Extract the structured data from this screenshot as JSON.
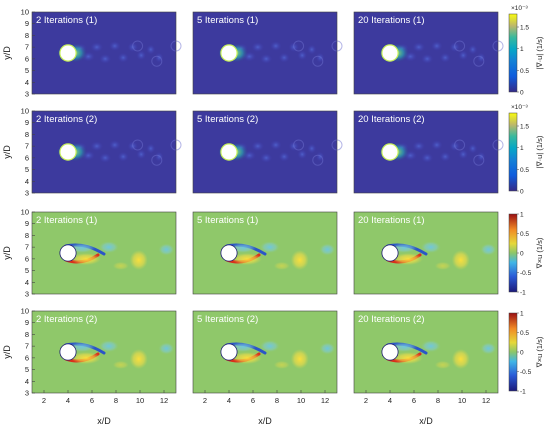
{
  "figure": {
    "xlabel": "x/D",
    "ylabel": "y/D",
    "panel_titles": [
      [
        "2 Iterations (1)",
        "5 Iterations (1)",
        "20 Iterations (1)"
      ],
      [
        "2 Iterations (2)",
        "5 Iterations (2)",
        "20 Iterations (2)"
      ],
      [
        "2 Iterations (1)",
        "5 Iterations (1)",
        "20 Iterations (1)"
      ],
      [
        "2 Iterations (2)",
        "5 Iterations (2)",
        "20 Iterations (2)"
      ]
    ],
    "colorbar_labels": {
      "divergence": "|∇·u| (1/s)",
      "curl": "∇×u (1/s)"
    },
    "colorbar_exponent": "×10⁻³"
  },
  "chart_data": [
    {
      "type": "heatmap",
      "quantity": "divergence",
      "row_suffix": "(1)",
      "panels": [
        "2 Iterations (1)",
        "5 Iterations (1)",
        "20 Iterations (1)"
      ],
      "xlim": [
        1,
        13
      ],
      "ylim": [
        3,
        10
      ],
      "xticks": [],
      "yticks": [
        3,
        4,
        5,
        6,
        7,
        8,
        9,
        10
      ],
      "colorbar": {
        "range": [
          0,
          1.8
        ],
        "ticks": [
          0,
          0.5,
          1,
          1.5
        ],
        "label": "|∇·u| (1/s)",
        "exponent": "×10⁻³",
        "colormap": "parula"
      },
      "cylinder": {
        "x": 4,
        "y": 6.5,
        "diameter": 1
      }
    },
    {
      "type": "heatmap",
      "quantity": "divergence",
      "row_suffix": "(2)",
      "panels": [
        "2 Iterations (2)",
        "5 Iterations (2)",
        "20 Iterations (2)"
      ],
      "xlim": [
        1,
        13
      ],
      "ylim": [
        3,
        10
      ],
      "xticks": [],
      "yticks": [
        3,
        4,
        5,
        6,
        7,
        8,
        9,
        10
      ],
      "colorbar": {
        "range": [
          0,
          1.8
        ],
        "ticks": [
          0,
          0.5,
          1,
          1.5
        ],
        "label": "|∇·u| (1/s)",
        "exponent": "×10⁻³",
        "colormap": "parula"
      },
      "cylinder": {
        "x": 4,
        "y": 6.5,
        "diameter": 1
      }
    },
    {
      "type": "heatmap",
      "quantity": "curl",
      "row_suffix": "(1)",
      "panels": [
        "2 Iterations (1)",
        "5 Iterations (1)",
        "20 Iterations (1)"
      ],
      "xlim": [
        1,
        13
      ],
      "ylim": [
        3,
        10
      ],
      "xticks": [],
      "yticks": [
        3,
        4,
        5,
        6,
        7,
        8,
        9,
        10
      ],
      "colorbar": {
        "range": [
          -1,
          1
        ],
        "ticks": [
          -1,
          -0.5,
          0,
          0.5,
          1
        ],
        "label": "∇×u (1/s)",
        "colormap": "jet"
      },
      "cylinder": {
        "x": 4,
        "y": 6.5,
        "diameter": 1
      }
    },
    {
      "type": "heatmap",
      "quantity": "curl",
      "row_suffix": "(2)",
      "panels": [
        "2 Iterations (2)",
        "5 Iterations (2)",
        "20 Iterations (2)"
      ],
      "xlim": [
        1,
        13
      ],
      "ylim": [
        3,
        10
      ],
      "xticks": [
        2,
        4,
        6,
        8,
        10,
        12
      ],
      "yticks": [
        3,
        4,
        5,
        6,
        7,
        8,
        9,
        10
      ],
      "colorbar": {
        "range": [
          -1,
          1
        ],
        "ticks": [
          -1,
          -0.5,
          0,
          0.5,
          1
        ],
        "label": "∇×u (1/s)",
        "colormap": "jet"
      },
      "cylinder": {
        "x": 4,
        "y": 6.5,
        "diameter": 1
      }
    }
  ]
}
